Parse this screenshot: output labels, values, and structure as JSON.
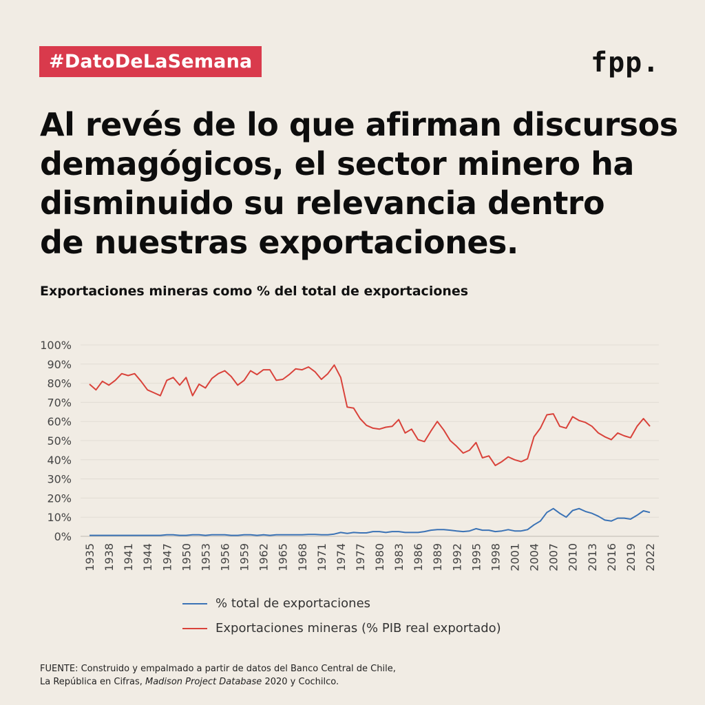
{
  "tag": "#DatoDeLaSemana",
  "logo": "fpp.",
  "headline": [
    "Al revés de lo que afirman discursos",
    "demagógicos, el sector minero ha",
    "disminuido su relevancia dentro",
    "de nuestras exportaciones."
  ],
  "source": {
    "line1": "FUENTE: Construido y empalmado a partir de datos del Banco Central de Chile,",
    "line2_prefix": "La República en Cifras, ",
    "line2_italic": "Madison Project Database",
    "line2_suffix": " 2020 y Cochilco."
  },
  "colors": {
    "accent": "#d93a4c",
    "background": "#f1ece4",
    "series_blue": "#3a72b5",
    "series_red": "#d9423a"
  },
  "chart_data": {
    "type": "line",
    "title": "Exportaciones mineras como % del total de exportaciones",
    "ylim": [
      0,
      100
    ],
    "ytick_labels": [
      "0%",
      "10%",
      "20%",
      "30%",
      "40%",
      "50%",
      "60%",
      "70%",
      "80%",
      "90%",
      "100%"
    ],
    "xtick_labels": [
      "1935",
      "1938",
      "1941",
      "1944",
      "1947",
      "1950",
      "1953",
      "1956",
      "1959",
      "1962",
      "1965",
      "1968",
      "1971",
      "1974",
      "1977",
      "1980",
      "1983",
      "1986",
      "1989",
      "1992",
      "1995",
      "1998",
      "2001",
      "2004",
      "2007",
      "2010",
      "2013",
      "2016",
      "2019",
      "2022"
    ],
    "grid": true,
    "legend_position": "bottom",
    "x": [
      1935,
      1936,
      1937,
      1938,
      1939,
      1940,
      1941,
      1942,
      1943,
      1944,
      1945,
      1946,
      1947,
      1948,
      1949,
      1950,
      1951,
      1952,
      1953,
      1954,
      1955,
      1956,
      1957,
      1958,
      1959,
      1960,
      1961,
      1962,
      1963,
      1964,
      1965,
      1966,
      1967,
      1968,
      1969,
      1970,
      1971,
      1972,
      1973,
      1974,
      1975,
      1976,
      1977,
      1978,
      1979,
      1980,
      1981,
      1982,
      1983,
      1984,
      1985,
      1986,
      1987,
      1988,
      1989,
      1990,
      1991,
      1992,
      1993,
      1994,
      1995,
      1996,
      1997,
      1998,
      1999,
      2000,
      2001,
      2002,
      2003,
      2004,
      2005,
      2006,
      2007,
      2008,
      2009,
      2010,
      2011,
      2012,
      2013,
      2014,
      2015,
      2016,
      2017,
      2018,
      2019,
      2020,
      2021,
      2022
    ],
    "series": [
      {
        "name": "% total de exportaciones",
        "color": "#3a72b5",
        "values": [
          0.5,
          0.5,
          0.5,
          0.5,
          0.5,
          0.5,
          0.5,
          0.5,
          0.5,
          0.5,
          0.5,
          0.5,
          0.8,
          0.8,
          0.5,
          0.5,
          0.8,
          0.8,
          0.5,
          0.8,
          0.8,
          0.8,
          0.5,
          0.5,
          0.8,
          0.8,
          0.5,
          0.8,
          0.5,
          0.8,
          0.8,
          0.8,
          0.8,
          0.8,
          1,
          1,
          0.8,
          0.8,
          1.2,
          2,
          1.5,
          2,
          1.8,
          1.8,
          2.5,
          2.5,
          2,
          2.5,
          2.5,
          2,
          2,
          2,
          2.5,
          3.2,
          3.5,
          3.5,
          3.2,
          2.8,
          2.5,
          2.8,
          4,
          3.2,
          3.2,
          2.5,
          2.8,
          3.5,
          2.8,
          2.8,
          3.5,
          6,
          8,
          12.5,
          14.5,
          12,
          10,
          13.5,
          14.5,
          13,
          12,
          10.5,
          8.5,
          8,
          9.5,
          9.5,
          9,
          11,
          13.3,
          12.5
        ]
      },
      {
        "name": "Exportaciones mineras (% PIB real exportado)",
        "color": "#d9423a",
        "values": [
          79.5,
          76.5,
          81,
          79,
          81.5,
          85,
          84,
          85,
          81,
          76.5,
          75,
          73.5,
          81.5,
          83,
          79,
          83,
          73.5,
          79.5,
          77.5,
          82.5,
          85,
          86.5,
          83.5,
          79,
          81.5,
          86.5,
          84.5,
          87,
          87,
          81.5,
          82,
          84.5,
          87.5,
          87,
          88.5,
          86,
          82,
          85,
          89.5,
          83,
          67.5,
          67,
          61.5,
          58,
          56.5,
          56,
          57,
          57.5,
          61,
          54,
          56,
          50.5,
          49.5,
          55,
          60,
          55.5,
          50,
          47,
          43.5,
          45,
          49,
          41,
          42,
          37,
          39,
          41.5,
          40,
          39,
          40.5,
          52,
          56.5,
          63.5,
          64,
          57.5,
          56.5,
          62.5,
          60.5,
          59.5,
          57.5,
          54,
          52,
          50.5,
          54,
          52.5,
          51.5,
          57.5,
          61.5,
          57.5
        ]
      }
    ]
  }
}
